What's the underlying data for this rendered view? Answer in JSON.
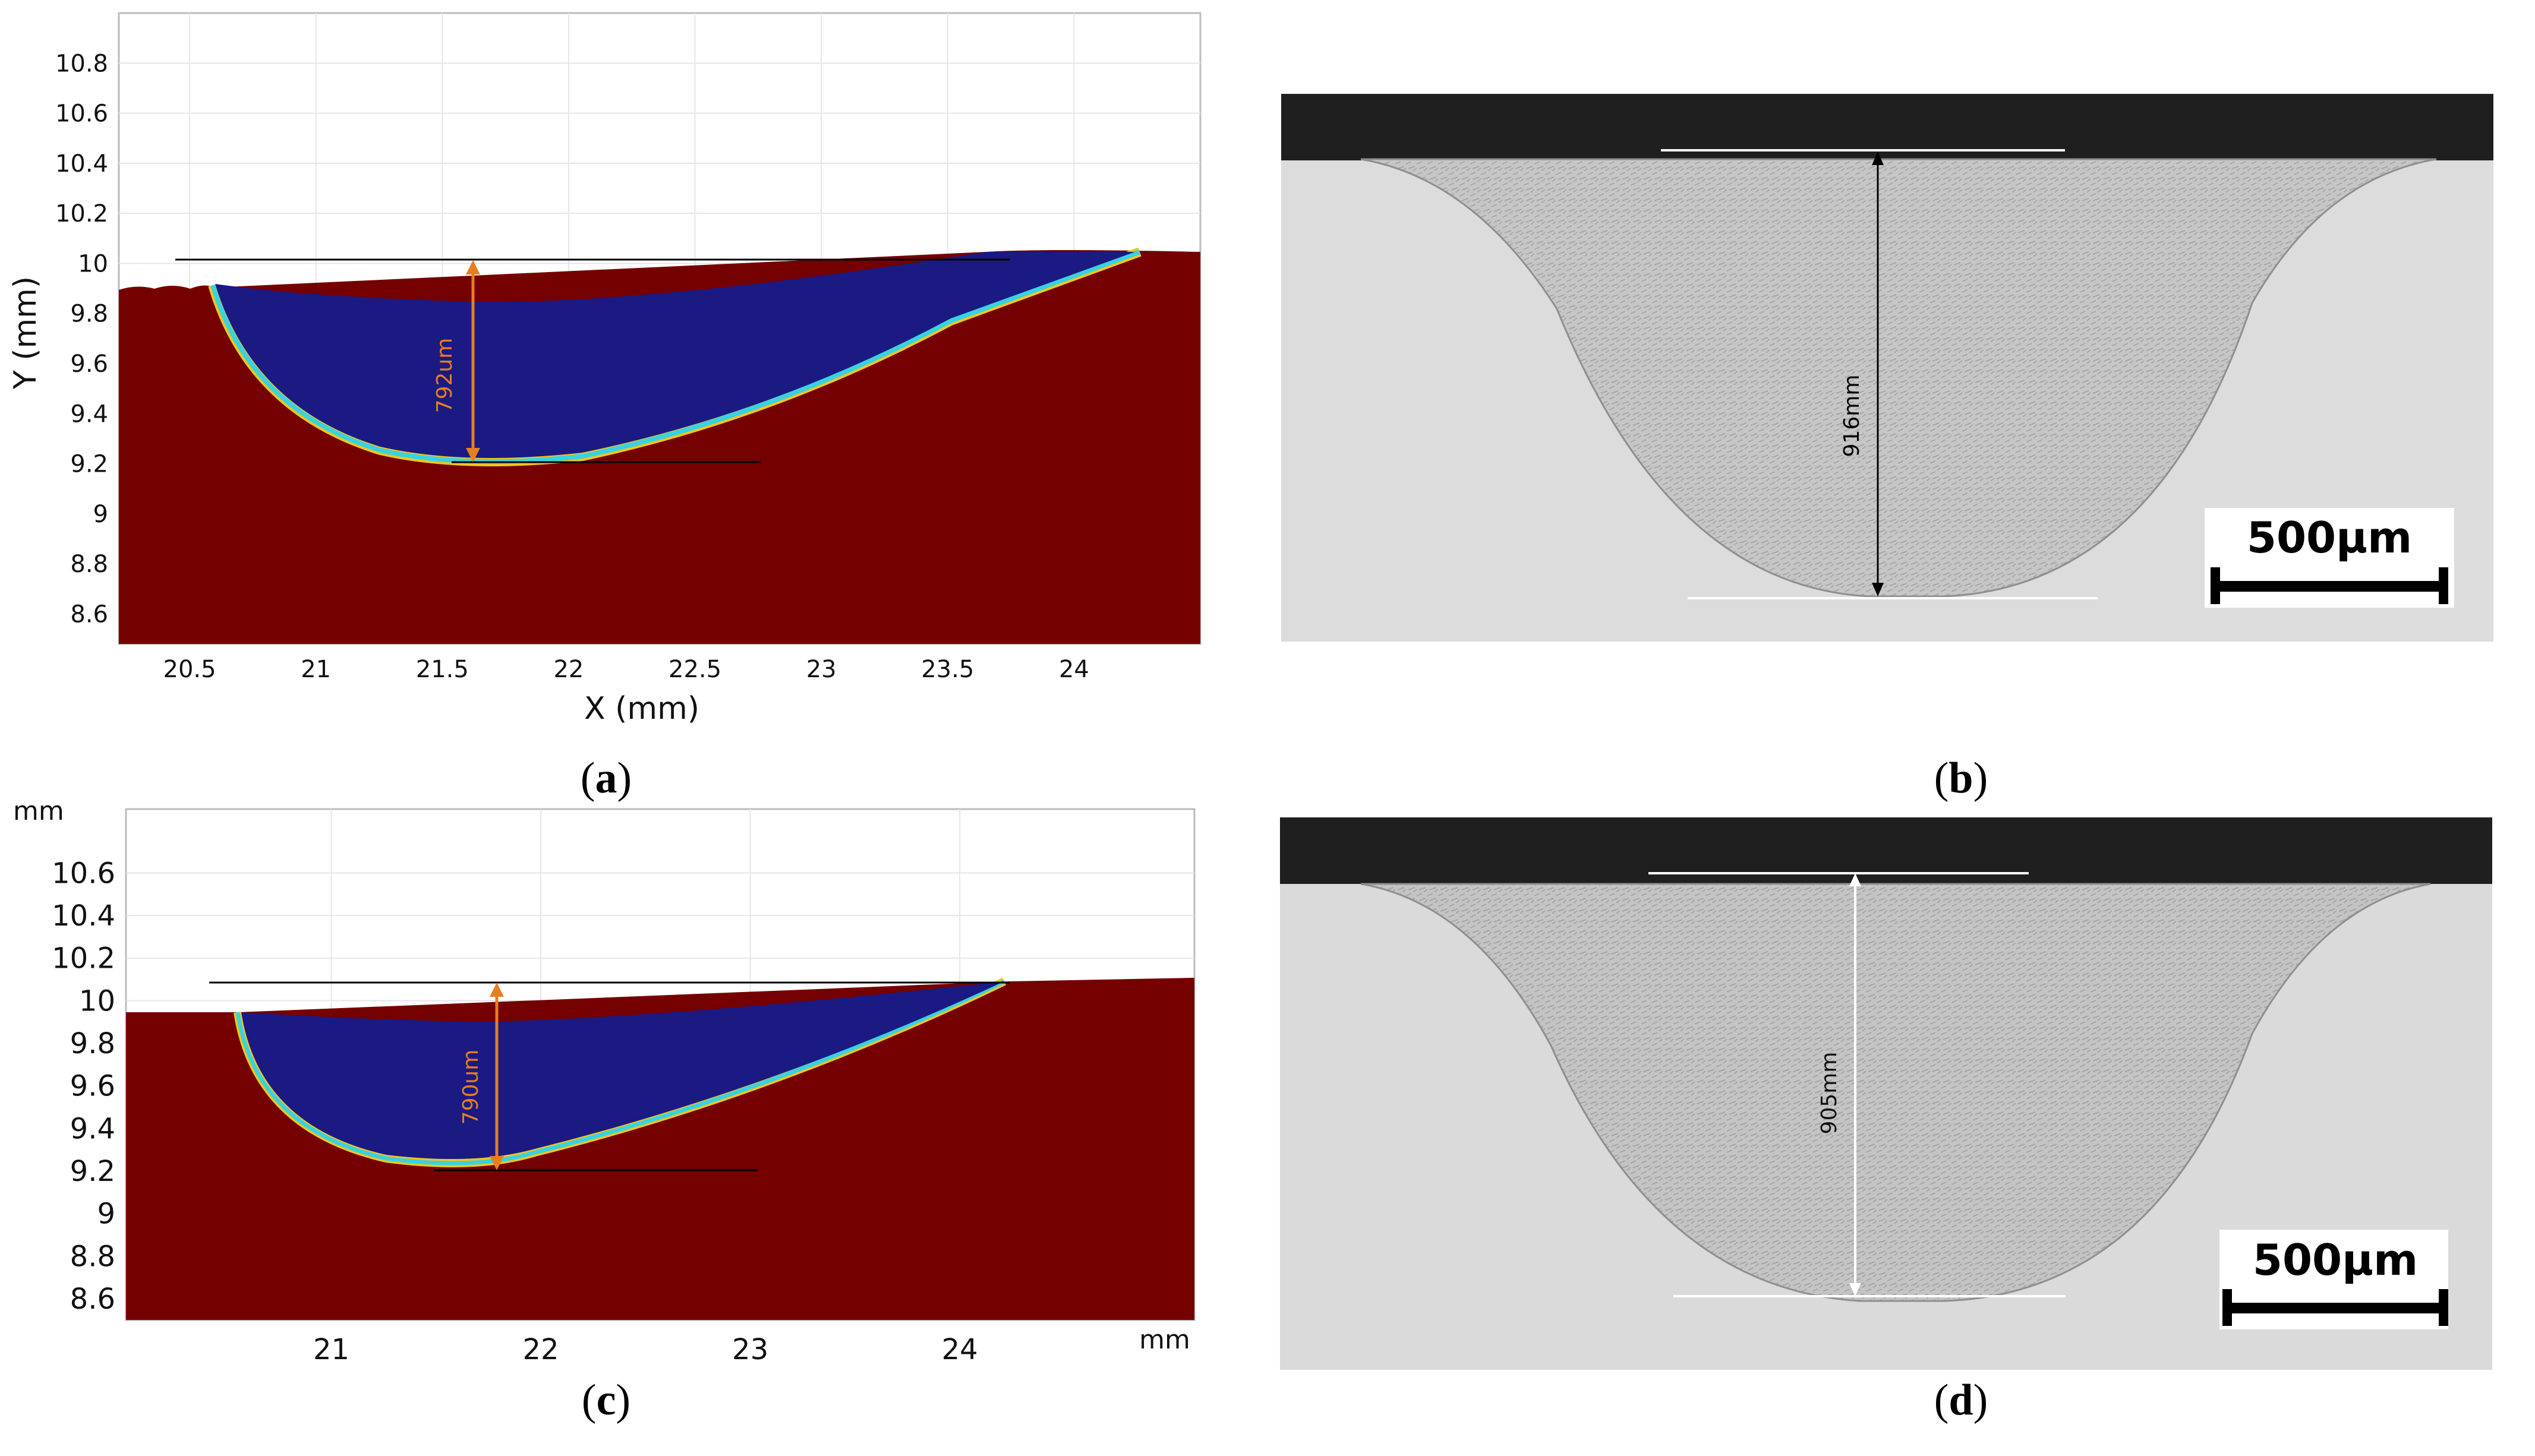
{
  "figure": {
    "panels": [
      {
        "id": "a",
        "caption": "a",
        "x_axis": {
          "label": "X (mm)",
          "ticks": [
            "20.5",
            "21",
            "21.5",
            "22",
            "22.5",
            "23",
            "23.5",
            "24"
          ],
          "range": [
            20.22,
            24.5
          ]
        },
        "y_axis": {
          "label": "Y (mm)",
          "ticks": [
            "8.6",
            "8.8",
            "9",
            "9.2",
            "9.4",
            "9.6",
            "9.8",
            "10",
            "10.2",
            "10.4",
            "10.6",
            "10.8"
          ],
          "range": [
            8.48,
            11.0
          ]
        },
        "annotation": "792um",
        "colors": {
          "substrate": "#750000",
          "melt_pool": "#1a1a82",
          "annotation": "#e67e22"
        }
      },
      {
        "id": "b",
        "caption": "b",
        "annotation": "916mm",
        "scale_bar": "500µm"
      },
      {
        "id": "c",
        "caption": "c",
        "unit_x": "mm",
        "unit_y": "mm",
        "x_axis": {
          "ticks": [
            "21",
            "22",
            "23",
            "24"
          ],
          "range": [
            20.02,
            25.12
          ]
        },
        "y_axis": {
          "ticks": [
            "8.6",
            "8.8",
            "9",
            "9.2",
            "9.4",
            "9.6",
            "9.8",
            "10",
            "10.2",
            "10.4",
            "10.6"
          ],
          "range": [
            8.5,
            10.9
          ]
        },
        "annotation": "790um",
        "colors": {
          "substrate": "#750000",
          "melt_pool": "#1a1a82",
          "annotation": "#e67e22"
        }
      },
      {
        "id": "d",
        "caption": "d",
        "annotation": "905mm",
        "scale_bar": "500µm"
      }
    ]
  }
}
